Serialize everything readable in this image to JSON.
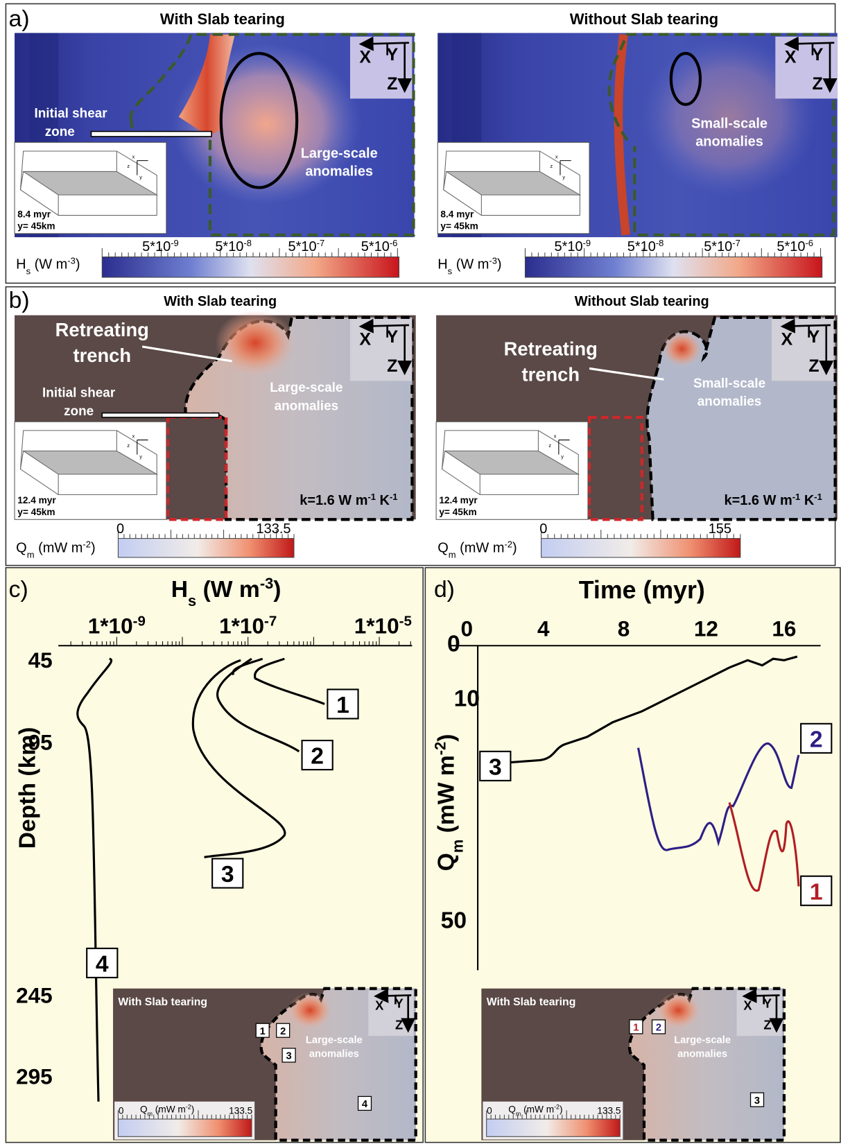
{
  "panel_a": {
    "label": "a)",
    "with_tearing": {
      "title": "With Slab tearing",
      "shear_zone": [
        "Initial shear",
        "zone"
      ],
      "anomalies": [
        "Large-scale",
        "anomalies"
      ],
      "axes": [
        "X",
        "Y",
        "Z"
      ],
      "inset_axes": [
        "x",
        "z",
        "y"
      ],
      "time": "8.4 myr",
      "depth": "y= 45km"
    },
    "without_tearing": {
      "title": "Without Slab tearing",
      "anomalies": [
        "Small-scale",
        "anomalies"
      ],
      "axes": [
        "X",
        "Y",
        "Z"
      ],
      "inset_axes": [
        "x",
        "z",
        "y"
      ],
      "time": "8.4 myr",
      "depth": "y= 45km"
    },
    "colorbar": {
      "symbol": "H",
      "subscript": "s",
      "unit": " (W m",
      "unit_exponent": "-3",
      "unit_close": ")",
      "ticks": [
        {
          "base": "5*10",
          "exponent": "-9"
        },
        {
          "base": "5*10",
          "exponent": "-8"
        },
        {
          "base": "5*10",
          "exponent": "-7"
        },
        {
          "base": "5*10",
          "exponent": "-6"
        }
      ]
    }
  },
  "panel_b": {
    "label": "b)",
    "with_tearing": {
      "title": "With Slab tearing",
      "trench": [
        "Retreating",
        "trench"
      ],
      "shear_zone": [
        "Initial shear",
        "zone"
      ],
      "anomalies": [
        "Large-scale",
        "anomalies"
      ],
      "axes": [
        "X",
        "Y",
        "Z"
      ],
      "inset_axes": [
        "x",
        "z",
        "y"
      ],
      "time": "12.4 myr",
      "depth": "y= 45km",
      "conductivity": {
        "text": "k=1.6 W m",
        "exponent_1": "-1",
        "unit": " K",
        "exponent_2": "-1"
      },
      "colorbar_ticks": [
        "0",
        "133.5"
      ]
    },
    "without_tearing": {
      "title": "Without Slab tearing",
      "trench": [
        "Retreating",
        "trench"
      ],
      "anomalies": [
        "Small-scale",
        "anomalies"
      ],
      "axes": [
        "X",
        "Y",
        "Z"
      ],
      "inset_axes": [
        "x",
        "z",
        "y"
      ],
      "time": "12.4 myr",
      "depth": "y= 45km",
      "conductivity": {
        "text": "k=1.6 W m",
        "exponent_1": "-1",
        "unit": " K",
        "exponent_2": "-1"
      },
      "colorbar_ticks": [
        "0",
        "155"
      ]
    },
    "colorbar": {
      "symbol": "Q",
      "subscript": "m",
      "unit": " (mW m",
      "unit_exponent": "-2",
      "unit_close": ")"
    }
  },
  "panel_c": {
    "label": "c)",
    "x_axis": {
      "symbol": "H",
      "subscript": "s",
      "unit": " (W m",
      "unit_exponent": "-3",
      "unit_close": ")",
      "ticks": [
        {
          "base": "1*10",
          "exponent": "-9"
        },
        {
          "base": "1*10",
          "exponent": "-7"
        },
        {
          "base": "1*10",
          "exponent": "-5"
        }
      ]
    },
    "y_axis": {
      "title": "Depth (km)",
      "ticks": [
        45,
        95,
        245,
        295
      ]
    },
    "curve_labels": [
      "1",
      "2",
      "3",
      "4"
    ],
    "inset": {
      "title": "With Slab tearing",
      "anomalies": [
        "Large-scale",
        "anomalies"
      ],
      "axes": [
        "X",
        "Y",
        "Z"
      ],
      "markers": [
        "1",
        "2",
        "3",
        "4"
      ],
      "colorbar": {
        "min": "0",
        "symbol": "Q",
        "subscript": "m",
        "unit": " (mW m",
        "unit_exponent": "-2",
        "unit_close": ")",
        "max": "133.5"
      }
    }
  },
  "panel_d": {
    "label": "d)",
    "x_axis": {
      "title": "Time (myr)",
      "ticks": [
        0,
        4,
        8,
        12,
        16
      ]
    },
    "y_axis": {
      "symbol": "Q",
      "subscript": "m",
      "unit": " (mW m",
      "unit_exponent": "-2",
      "unit_close": ")",
      "ticks": [
        0,
        10,
        50
      ]
    },
    "curve_labels": [
      "1",
      "2",
      "3"
    ],
    "inset": {
      "title": "With Slab tearing",
      "anomalies": [
        "Large-scale",
        "anomalies"
      ],
      "axes": [
        "X",
        "Y",
        "Z"
      ],
      "markers": [
        "1",
        "2",
        "3"
      ],
      "colorbar": {
        "min": "0",
        "symbol": "Q",
        "subscript": "m",
        "unit": " (mW m",
        "unit_exponent": "-2",
        "unit_close": ")",
        "max": "133.5"
      }
    }
  }
}
